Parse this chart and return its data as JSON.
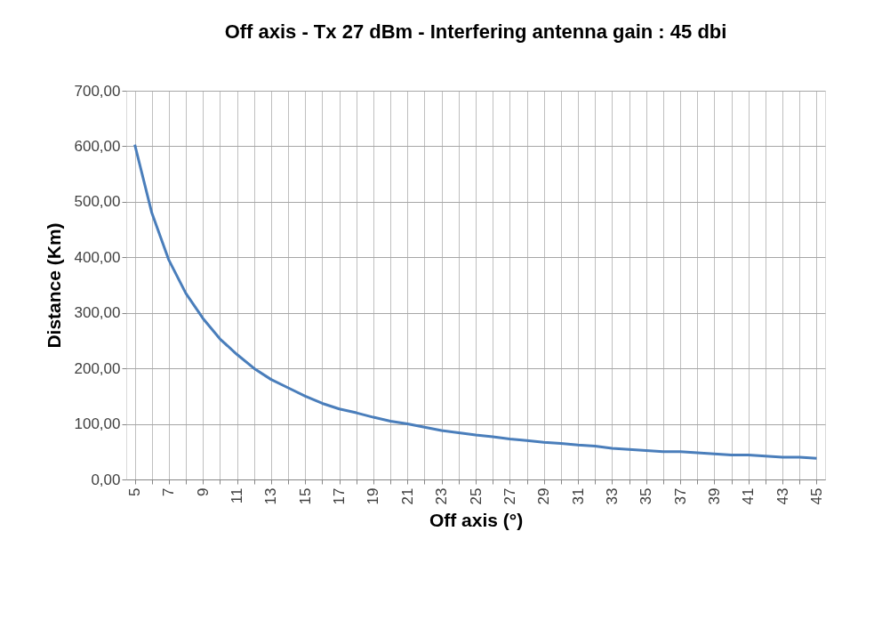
{
  "chart_data": {
    "type": "line",
    "title": "Off axis - Tx 27 dBm - Interfering antenna gain : 45 dbi",
    "xlabel": "Off axis (°)",
    "ylabel": "Distance (Km)",
    "categories": [
      "5",
      null,
      "7",
      null,
      "9",
      null,
      "11",
      null,
      "13",
      null,
      "15",
      null,
      "17",
      null,
      "19",
      null,
      "21",
      null,
      "23",
      null,
      "25",
      null,
      "27",
      null,
      "29",
      null,
      "31",
      null,
      "33",
      null,
      "35",
      null,
      "37",
      null,
      "39",
      null,
      "41",
      null,
      "43",
      null,
      "45"
    ],
    "series": [
      {
        "color": "#4a7ebb",
        "values": [
          603,
          480,
          395,
          335,
          290,
          253,
          225,
          200,
          180,
          165,
          150,
          137,
          127,
          120,
          112,
          105,
          100,
          94,
          88,
          84,
          80,
          77,
          73,
          70,
          67,
          65,
          62,
          60,
          56,
          54,
          52,
          50,
          50,
          48,
          46,
          44,
          44,
          42,
          40,
          40,
          38
        ]
      }
    ],
    "ylim": [
      0,
      700
    ],
    "yticks": [
      {
        "value": 0,
        "label": "0,00"
      },
      {
        "value": 100,
        "label": "100,00"
      },
      {
        "value": 200,
        "label": "200,00"
      },
      {
        "value": 300,
        "label": "300,00"
      },
      {
        "value": 400,
        "label": "400,00"
      },
      {
        "value": 500,
        "label": "500,00"
      },
      {
        "value": 600,
        "label": "600,00"
      },
      {
        "value": 700,
        "label": "700,00"
      }
    ],
    "grid": true,
    "legend": false,
    "marker": "none",
    "line_style": "solid"
  }
}
